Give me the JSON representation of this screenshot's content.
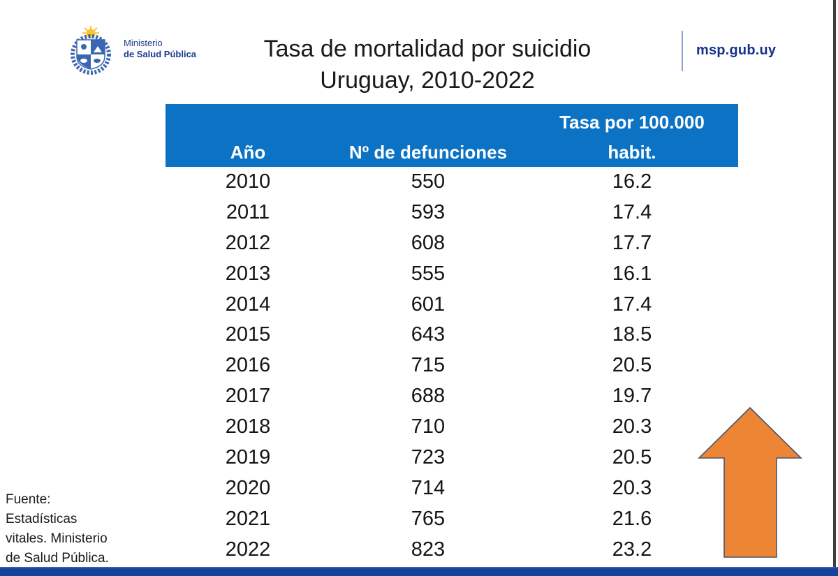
{
  "colors": {
    "header_blue": "#0B72C4",
    "footer_navy": "#17429B",
    "brand_navy": "#16338B",
    "arrow_orange": "#ED8634",
    "arrow_outline": "#4A5568",
    "divider_gray_blue": "#8CA6C9",
    "right_border_gray": "#3D3D3D",
    "logo_blue": "#3A67B1",
    "logo_sun_yellow": "#FFC42C"
  },
  "header": {
    "ministry_line1": "Ministerio",
    "ministry_line2": "de Salud Pública",
    "brand_url": "msp.gub.uy",
    "logo_icon": "uruguay-coat-of-arms"
  },
  "title": {
    "line1": "Tasa de mortalidad por suicidio",
    "line2": "Uruguay, 2010-2022"
  },
  "table": {
    "headers": {
      "year": "Año",
      "deaths": "Nº de defunciones",
      "rate_line1": "Tasa por 100.000",
      "rate_line2": "habit."
    },
    "rows": [
      [
        "2010",
        "550",
        "16.2"
      ],
      [
        "2011",
        "593",
        "17.4"
      ],
      [
        "2012",
        "608",
        "17.7"
      ],
      [
        "2013",
        "555",
        "16.1"
      ],
      [
        "2014",
        "601",
        "17.4"
      ],
      [
        "2015",
        "643",
        "18.5"
      ],
      [
        "2016",
        "715",
        "20.5"
      ],
      [
        "2017",
        "688",
        "19.7"
      ],
      [
        "2018",
        "710",
        "20.3"
      ],
      [
        "2019",
        "723",
        "20.5"
      ],
      [
        "2020",
        "714",
        "20.3"
      ],
      [
        "2021",
        "765",
        "21.6"
      ],
      [
        "2022",
        "823",
        "23.2"
      ]
    ]
  },
  "source": {
    "text": "Fuente:\nEstadísticas\nvitales. Ministerio\nde Salud Pública."
  },
  "icons": {
    "arrow": "up-arrow"
  },
  "chart_data": {
    "type": "table",
    "title": "Tasa de mortalidad por suicidio Uruguay, 2010-2022",
    "columns": [
      "Año",
      "Nº de defunciones",
      "Tasa por 100.000 habit."
    ],
    "categories": [
      "2010",
      "2011",
      "2012",
      "2013",
      "2014",
      "2015",
      "2016",
      "2017",
      "2018",
      "2019",
      "2020",
      "2021",
      "2022"
    ],
    "series": [
      {
        "name": "Nº de defunciones",
        "values": [
          550,
          593,
          608,
          555,
          601,
          643,
          715,
          688,
          710,
          723,
          714,
          765,
          823
        ]
      },
      {
        "name": "Tasa por 100.000 habit.",
        "values": [
          16.2,
          17.4,
          17.7,
          16.1,
          17.4,
          18.5,
          20.5,
          19.7,
          20.3,
          20.5,
          20.3,
          21.6,
          23.2
        ]
      }
    ]
  }
}
